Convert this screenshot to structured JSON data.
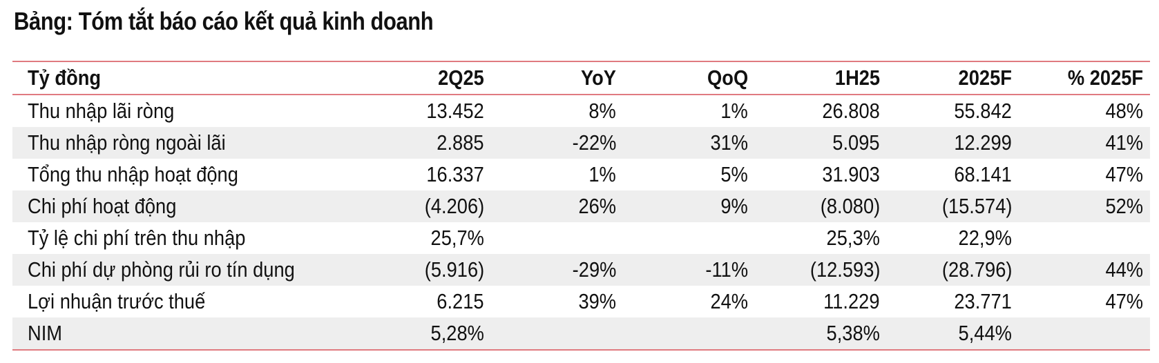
{
  "title": "Bảng: Tóm tắt báo cáo kết quả kinh doanh",
  "table": {
    "headers": [
      "Tỷ đồng",
      "2Q25",
      "YoY",
      "QoQ",
      "1H25",
      "2025F",
      "% 2025F"
    ],
    "rows": [
      [
        "Thu nhập lãi ròng",
        "13.452",
        "8%",
        "1%",
        "26.808",
        "55.842",
        "48%"
      ],
      [
        "Thu nhập ròng ngoài lãi",
        "2.885",
        "-22%",
        "31%",
        "5.095",
        "12.299",
        "41%"
      ],
      [
        "Tổng thu nhập hoạt động",
        "16.337",
        "1%",
        "5%",
        "31.903",
        "68.141",
        "47%"
      ],
      [
        "Chi phí hoạt động",
        "(4.206)",
        "26%",
        "9%",
        "(8.080)",
        "(15.574)",
        "52%"
      ],
      [
        "Tỷ lệ chi phí trên thu nhập",
        "25,7%",
        "",
        "",
        "25,3%",
        "22,9%",
        ""
      ],
      [
        "Chi phí dự phòng rủi ro tín dụng",
        "(5.916)",
        "-29%",
        "-11%",
        "(12.593)",
        "(28.796)",
        "44%"
      ],
      [
        "Lợi nhuận trước thuế",
        "6.215",
        "39%",
        "24%",
        "11.229",
        "23.771",
        "47%"
      ],
      [
        "NIM",
        "5,28%",
        "",
        "",
        "5,38%",
        "5,44%",
        ""
      ]
    ]
  },
  "colors": {
    "rule": "#e07a80",
    "shade": "#eeeeee"
  }
}
